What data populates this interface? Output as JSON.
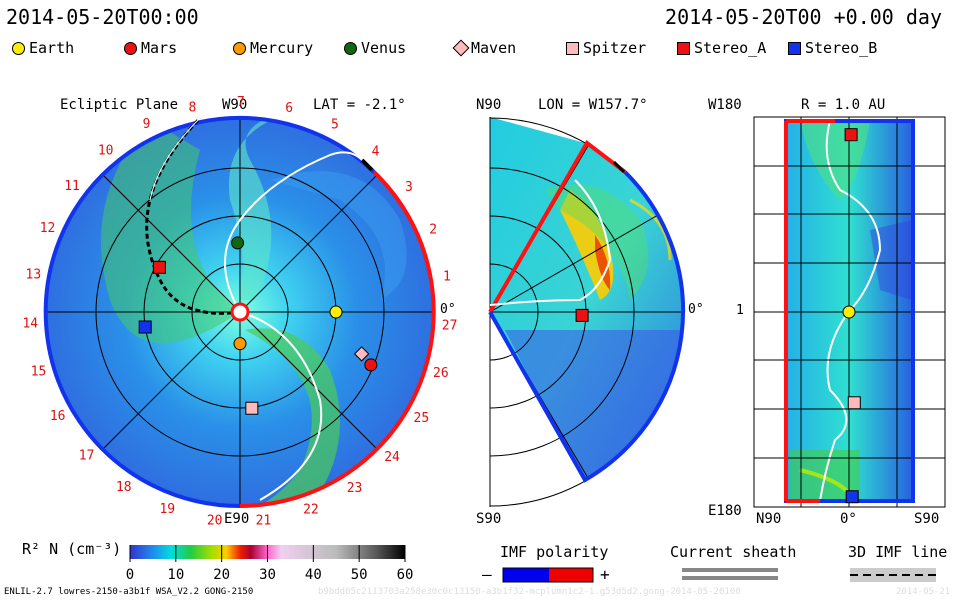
{
  "header": {
    "left_timestamp": "2014-05-20T00:00",
    "right_timestamp": "2014-05-20T00 +0.00 day"
  },
  "legend": [
    {
      "label": "Earth",
      "shape": "circle",
      "color": "#ffee00"
    },
    {
      "label": "Mars",
      "shape": "circle",
      "color": "#ee1111"
    },
    {
      "label": "Mercury",
      "shape": "circle",
      "color": "#ff9900"
    },
    {
      "label": "Venus",
      "shape": "circle",
      "color": "#116611"
    },
    {
      "label": "Maven",
      "shape": "diamond",
      "color": "#ffbbbb"
    },
    {
      "label": "Spitzer",
      "shape": "square",
      "color": "#ffbbbb"
    },
    {
      "label": "Stereo_A",
      "shape": "square",
      "color": "#ee1111"
    },
    {
      "label": "Stereo_B",
      "shape": "square",
      "color": "#1133ee"
    }
  ],
  "ecliptic": {
    "title": "Ecliptic Plane",
    "top_label": "W90",
    "lat_label": "LAT = -2.1°",
    "bottom_label": "E90",
    "right_label": "0°",
    "sector_ticks": [
      "1",
      "2",
      "3",
      "4",
      "5",
      "6",
      "7",
      "8",
      "9",
      "10",
      "11",
      "12",
      "13",
      "14",
      "15",
      "16",
      "17",
      "18",
      "19",
      "20",
      "21",
      "22",
      "23",
      "24",
      "25",
      "26",
      "27"
    ]
  },
  "meridional": {
    "top_label": "N90",
    "lon_label": "LON = W157.7°",
    "right_label": "0°",
    "bottom_label": "S90"
  },
  "radial": {
    "r_label": "R = 1.0 AU",
    "top_left_label": "W180",
    "mid_left_label": "1",
    "bottom_left_label": "E180",
    "x_ticks": [
      "N90",
      "0°",
      "S90"
    ]
  },
  "colorbar": {
    "label": "R² N (cm⁻³)",
    "ticks": [
      "0",
      "10",
      "20",
      "30",
      "40",
      "50",
      "60"
    ],
    "min": 0,
    "max": 60
  },
  "imf": {
    "title": "IMF polarity",
    "minus": "–",
    "plus": "+",
    "neg_color": "#0000ee",
    "pos_color": "#ee0000"
  },
  "current_sheath": {
    "title": "Current sheath"
  },
  "imf_line": {
    "title": "3D IMF line"
  },
  "footer": {
    "model_info": "ENLIL-2.7 lowres-2150-a3b1f WSA_V2.2 GONG-2150",
    "watermark": "b9bdd05c2113703a258e30c0c13150-a3b1f32-mcplumn1c2-1.g53d5d2.gong-2014-05-20100",
    "watermark_date": "2014-05-21"
  },
  "chart_data": [
    {
      "type": "heatmap",
      "panel": "ecliptic",
      "title": "Ecliptic Plane",
      "lat_deg": -2.1,
      "color_quantity": "R² N (cm⁻³)",
      "crange": [
        0,
        60
      ],
      "bodies": [
        {
          "name": "Earth",
          "angle_deg": 0,
          "r_au": 1.0
        },
        {
          "name": "Mars",
          "angle_deg": -22,
          "r_au": 1.47
        },
        {
          "name": "Mercury",
          "angle_deg": -90,
          "r_au": 0.33
        },
        {
          "name": "Venus",
          "angle_deg": 92,
          "r_au": 0.72
        },
        {
          "name": "Maven",
          "angle_deg": -19,
          "r_au": 1.34
        },
        {
          "name": "Spitzer",
          "angle_deg": -83,
          "r_au": 1.01
        },
        {
          "name": "Stereo_A",
          "angle_deg": 151,
          "r_au": 0.96
        },
        {
          "name": "Stereo_B",
          "angle_deg": -171,
          "r_au": 1.0
        }
      ]
    },
    {
      "type": "heatmap",
      "panel": "meridional",
      "lon_deg": 157.7,
      "bodies": [
        {
          "name": "Stereo_A",
          "lat_deg": -2.1,
          "r_au": 0.96
        }
      ]
    },
    {
      "type": "heatmap",
      "panel": "radial",
      "r_au": 1.0,
      "bodies": [
        {
          "name": "Stereo_A",
          "lat_deg": -2,
          "lon_deg": -168
        },
        {
          "name": "Earth",
          "lat_deg": 0,
          "lon_deg": 0
        },
        {
          "name": "Spitzer",
          "lat_deg": -5,
          "lon_deg": 86
        },
        {
          "name": "Stereo_B",
          "lat_deg": -3,
          "lon_deg": 175
        }
      ]
    }
  ]
}
